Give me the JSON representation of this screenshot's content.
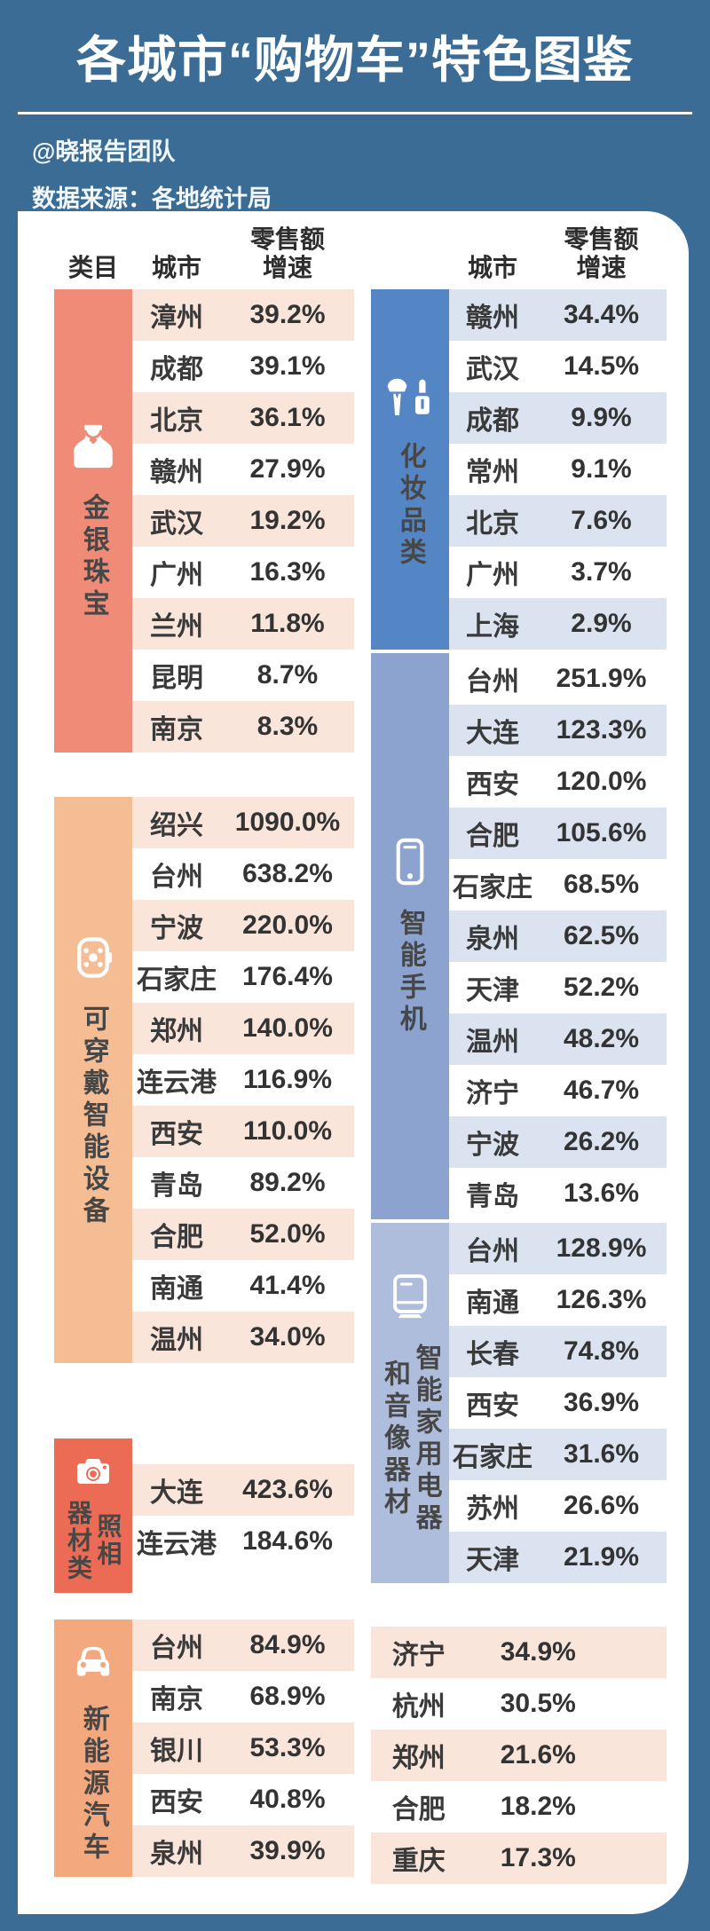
{
  "page": {
    "background_color": "#3A6C95",
    "title": "各城市“购物车”特色图鉴",
    "byline": "@晓报告团队",
    "source": "数据来源：各地统计局"
  },
  "table": {
    "headers": {
      "category": "类目",
      "city": "城市",
      "growth": "零售额增速"
    },
    "columns": {
      "left": [
        {
          "name": "jewelry",
          "label_columns": [
            "金银珠宝"
          ],
          "icon": "necklace-icon",
          "block_color": "#EF8B76",
          "stripe_color": "#FAE5DA",
          "start_tinted": true,
          "rows": [
            {
              "city": "漳州",
              "growth": "39.2%"
            },
            {
              "city": "成都",
              "growth": "39.1%"
            },
            {
              "city": "北京",
              "growth": "36.1%"
            },
            {
              "city": "赣州",
              "growth": "27.9%"
            },
            {
              "city": "武汉",
              "growth": "19.2%"
            },
            {
              "city": "广州",
              "growth": "16.3%"
            },
            {
              "city": "兰州",
              "growth": "11.8%"
            },
            {
              "city": "昆明",
              "growth": "8.7%"
            },
            {
              "city": "南京",
              "growth": "8.3%"
            }
          ]
        },
        {
          "name": "wearables",
          "label_columns": [
            "可穿戴智能设备"
          ],
          "icon": "watch-icon",
          "block_color": "#F5BD94",
          "stripe_color": "#FAE5DA",
          "start_tinted": true,
          "rows": [
            {
              "city": "绍兴",
              "growth": "1090.0%"
            },
            {
              "city": "台州",
              "growth": "638.2%"
            },
            {
              "city": "宁波",
              "growth": "220.0%"
            },
            {
              "city": "石家庄",
              "growth": "176.4%"
            },
            {
              "city": "郑州",
              "growth": "140.0%"
            },
            {
              "city": "连云港",
              "growth": "116.9%"
            },
            {
              "city": "西安",
              "growth": "110.0%"
            },
            {
              "city": "青岛",
              "growth": "89.2%"
            },
            {
              "city": "合肥",
              "growth": "52.0%"
            },
            {
              "city": "南通",
              "growth": "41.4%"
            },
            {
              "city": "温州",
              "growth": "34.0%"
            }
          ]
        },
        {
          "name": "camera",
          "label_columns": [
            "照相",
            "器材类"
          ],
          "icon": "camera-icon",
          "block_color": "#EB6B54",
          "stripe_color": "#FAE5DA",
          "start_tinted": true,
          "rows": [
            {
              "city": "大连",
              "growth": "423.6%"
            },
            {
              "city": "连云港",
              "growth": "184.6%"
            }
          ]
        },
        {
          "name": "nev",
          "label_columns": [
            "新能源汽车"
          ],
          "icon": "car-icon",
          "block_color": "#F3A87E",
          "stripe_color": "#FAE5DA",
          "start_tinted": true,
          "rows": [
            {
              "city": "台州",
              "growth": "84.9%"
            },
            {
              "city": "南京",
              "growth": "68.9%"
            },
            {
              "city": "银川",
              "growth": "53.3%"
            },
            {
              "city": "西安",
              "growth": "40.8%"
            },
            {
              "city": "泉州",
              "growth": "39.9%"
            }
          ]
        }
      ],
      "right": [
        {
          "name": "cosmetics",
          "label_columns": [
            "化妆品类"
          ],
          "icon": "cosmetics-icon",
          "block_color": "#5486C6",
          "stripe_color": "#DBE2F0",
          "start_tinted": true,
          "rows": [
            {
              "city": "赣州",
              "growth": "34.4%"
            },
            {
              "city": "武汉",
              "growth": "14.5%"
            },
            {
              "city": "成都",
              "growth": "9.9%"
            },
            {
              "city": "常州",
              "growth": "9.1%"
            },
            {
              "city": "北京",
              "growth": "7.6%"
            },
            {
              "city": "广州",
              "growth": "3.7%"
            },
            {
              "city": "上海",
              "growth": "2.9%"
            }
          ]
        },
        {
          "name": "smartphones",
          "label_columns": [
            "智能手机"
          ],
          "icon": "phone-icon",
          "block_color": "#8BA3CE",
          "stripe_color": "#DBE2F0",
          "start_tinted": false,
          "rows": [
            {
              "city": "台州",
              "growth": "251.9%"
            },
            {
              "city": "大连",
              "growth": "123.3%"
            },
            {
              "city": "西安",
              "growth": "120.0%"
            },
            {
              "city": "合肥",
              "growth": "105.6%"
            },
            {
              "city": "石家庄",
              "growth": "68.5%"
            },
            {
              "city": "泉州",
              "growth": "62.5%"
            },
            {
              "city": "天津",
              "growth": "52.2%"
            },
            {
              "city": "温州",
              "growth": "48.2%"
            },
            {
              "city": "济宁",
              "growth": "46.7%"
            },
            {
              "city": "宁波",
              "growth": "26.2%"
            },
            {
              "city": "青岛",
              "growth": "13.6%"
            }
          ]
        },
        {
          "name": "smart-appliances",
          "label_columns": [
            "智能家用电器",
            "和音像器材"
          ],
          "icon": "appliance-icon",
          "block_color": "#AFBDDD",
          "stripe_color": "#DBE2F0",
          "start_tinted": true,
          "rows": [
            {
              "city": "台州",
              "growth": "128.9%"
            },
            {
              "city": "南通",
              "growth": "126.3%"
            },
            {
              "city": "长春",
              "growth": "74.8%"
            },
            {
              "city": "西安",
              "growth": "36.9%"
            },
            {
              "city": "石家庄",
              "growth": "31.6%"
            },
            {
              "city": "苏州",
              "growth": "26.6%"
            },
            {
              "city": "天津",
              "growth": "21.9%"
            }
          ]
        },
        {
          "name": "nev-continued",
          "has_block": false,
          "stripe_color": "#FAE5DA",
          "start_tinted": true,
          "rows": [
            {
              "city": "济宁",
              "growth": "34.9%"
            },
            {
              "city": "杭州",
              "growth": "30.5%"
            },
            {
              "city": "郑州",
              "growth": "21.6%"
            },
            {
              "city": "合肥",
              "growth": "18.2%"
            },
            {
              "city": "重庆",
              "growth": "17.3%"
            }
          ]
        }
      ]
    }
  },
  "chart_data": {
    "type": "table",
    "title": "各城市“购物车”特色图鉴",
    "source": "数据来源：各地统计局",
    "columns": [
      "类目",
      "城市",
      "零售额增速"
    ],
    "unit": "%",
    "categories": [
      {
        "name": "金银珠宝",
        "cities": [
          "漳州",
          "成都",
          "北京",
          "赣州",
          "武汉",
          "广州",
          "兰州",
          "昆明",
          "南京"
        ],
        "values_pct": [
          39.2,
          39.1,
          36.1,
          27.9,
          19.2,
          16.3,
          11.8,
          8.7,
          8.3
        ]
      },
      {
        "name": "化妆品类",
        "cities": [
          "赣州",
          "武汉",
          "成都",
          "常州",
          "北京",
          "广州",
          "上海"
        ],
        "values_pct": [
          34.4,
          14.5,
          9.9,
          9.1,
          7.6,
          3.7,
          2.9
        ]
      },
      {
        "name": "可穿戴智能设备",
        "cities": [
          "绍兴",
          "台州",
          "宁波",
          "石家庄",
          "郑州",
          "连云港",
          "西安",
          "青岛",
          "合肥",
          "南通",
          "温州"
        ],
        "values_pct": [
          1090.0,
          638.2,
          220.0,
          176.4,
          140.0,
          116.9,
          110.0,
          89.2,
          52.0,
          41.4,
          34.0
        ]
      },
      {
        "name": "智能手机",
        "cities": [
          "台州",
          "大连",
          "西安",
          "合肥",
          "石家庄",
          "泉州",
          "天津",
          "温州",
          "济宁",
          "宁波",
          "青岛"
        ],
        "values_pct": [
          251.9,
          123.3,
          120.0,
          105.6,
          68.5,
          62.5,
          52.2,
          48.2,
          46.7,
          26.2,
          13.6
        ]
      },
      {
        "name": "照相器材类",
        "cities": [
          "大连",
          "连云港"
        ],
        "values_pct": [
          423.6,
          184.6
        ]
      },
      {
        "name": "智能家用电器和音像器材",
        "cities": [
          "台州",
          "南通",
          "长春",
          "西安",
          "石家庄",
          "苏州",
          "天津"
        ],
        "values_pct": [
          128.9,
          126.3,
          74.8,
          36.9,
          31.6,
          26.6,
          21.9
        ]
      },
      {
        "name": "新能源汽车",
        "cities": [
          "台州",
          "南京",
          "银川",
          "西安",
          "泉州",
          "济宁",
          "杭州",
          "郑州",
          "合肥",
          "重庆"
        ],
        "values_pct": [
          84.9,
          68.9,
          53.3,
          40.8,
          39.9,
          34.9,
          30.5,
          21.6,
          18.2,
          17.3
        ]
      }
    ]
  }
}
